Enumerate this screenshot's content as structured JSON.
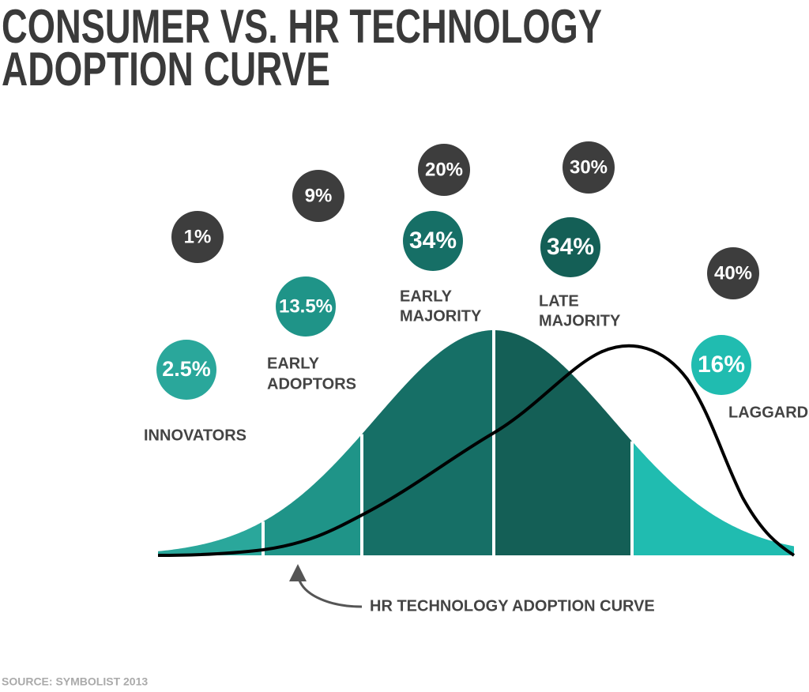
{
  "title": {
    "line1": "CONSUMER VS. HR TECHNOLOGY",
    "line2": "ADOPTION CURVE"
  },
  "segments": [
    {
      "label_lines": [
        "INNOVATORS"
      ],
      "consumer": "2.5%",
      "hr": "1%"
    },
    {
      "label_lines": [
        "EARLY",
        "ADOPTORS"
      ],
      "consumer": "13.5%",
      "hr": "9%"
    },
    {
      "label_lines": [
        "EARLY",
        "MAJORITY"
      ],
      "consumer": "34%",
      "hr": "20%"
    },
    {
      "label_lines": [
        "LATE",
        "MAJORITY"
      ],
      "consumer": "34%",
      "hr": "30%"
    },
    {
      "label_lines": [
        "LAGGARDS"
      ],
      "consumer": "16%",
      "hr": "40%"
    }
  ],
  "hr_curve_label": "HR TECHNOLOGY ADOPTION CURVE",
  "source": "SOURCE: SYMBOLIST 2013"
}
